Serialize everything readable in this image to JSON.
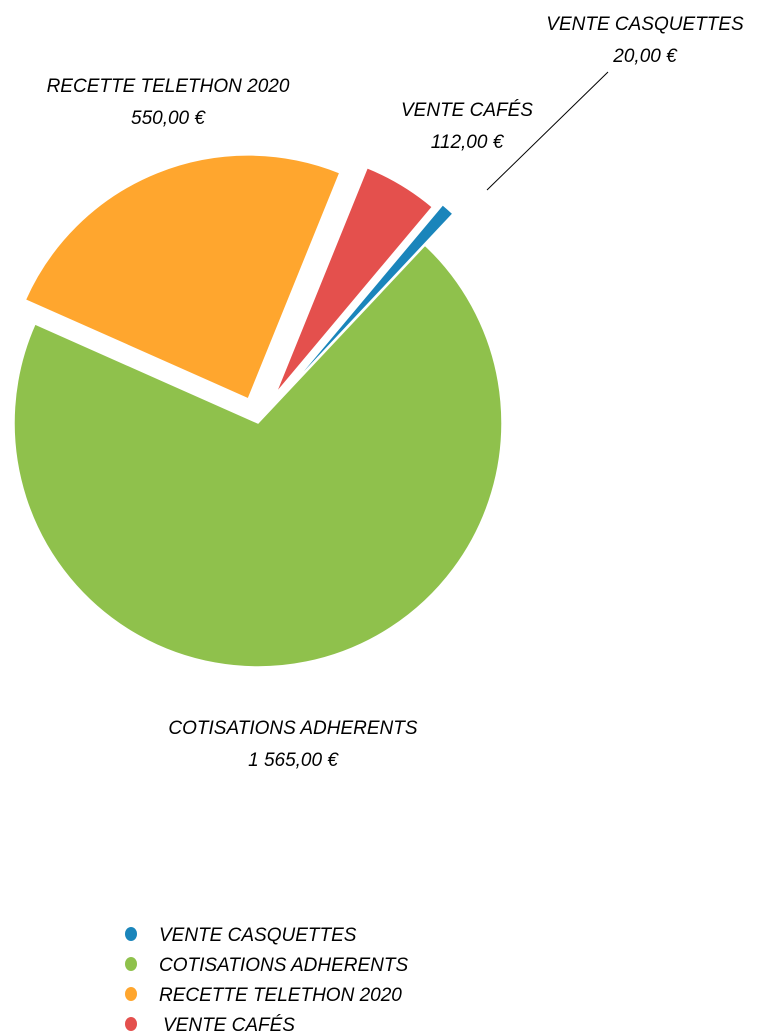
{
  "chart_data": {
    "type": "pie",
    "title": "",
    "slices": [
      {
        "name": "VENTE CASQUETTES",
        "value": 20.0,
        "label": "20,00 €",
        "color": "#1a85bb"
      },
      {
        "name": "COTISATIONS ADHERENTS",
        "value": 1565.0,
        "label": "1 565,00 €",
        "color": "#8fc14c"
      },
      {
        "name": "RECETTE TELETHON 2020",
        "value": 550.0,
        "label": "550,00 €",
        "color": "#ffa62e"
      },
      {
        "name": "VENTE CAFÉS",
        "value": 112.0,
        "label": "112,00 €",
        "color": "#e4504d"
      }
    ],
    "legend_position": "bottom"
  }
}
